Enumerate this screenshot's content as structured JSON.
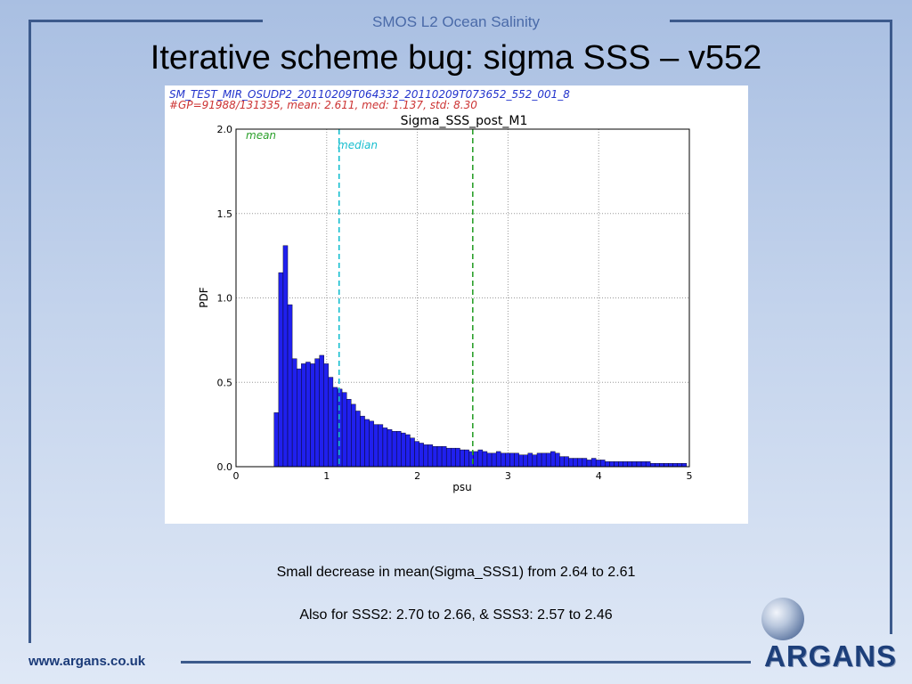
{
  "slide": {
    "header": "SMOS L2 Ocean Salinity",
    "title": "Iterative scheme bug: sigma SSS – v552",
    "note1": "Small decrease in mean(Sigma_SSS1) from 2.64 to 2.61",
    "note2": "Also for SSS2: 2.70 to 2.66, & SSS3: 2.57 to 2.46",
    "footer_url": "www.argans.co.uk",
    "logo_text": "ARGANS"
  },
  "chart_data": {
    "type": "bar",
    "annotation_file": "SM_TEST_MIR_OSUDP2_20110209T064332_20110209T073652_552_001_8",
    "annotation_stats": "#GP=91988/131335, mean: 2.611, med: 1.137, std: 8.30",
    "title": "Sigma_SSS_post_M1",
    "xlabel": "psu",
    "ylabel": "PDF",
    "xlim": [
      0,
      5
    ],
    "ylim": [
      0,
      2.0
    ],
    "xticks": [
      "0",
      "1",
      "2",
      "3",
      "4",
      "5"
    ],
    "yticks": [
      "0.0",
      "0.5",
      "1.0",
      "1.5",
      "2.0"
    ],
    "grid": true,
    "bin_start": 0.42,
    "bin_width": 0.05,
    "values": [
      0.32,
      1.15,
      1.31,
      0.96,
      0.64,
      0.58,
      0.61,
      0.62,
      0.61,
      0.64,
      0.66,
      0.61,
      0.53,
      0.47,
      0.46,
      0.44,
      0.4,
      0.37,
      0.33,
      0.3,
      0.28,
      0.27,
      0.25,
      0.25,
      0.23,
      0.22,
      0.21,
      0.21,
      0.2,
      0.19,
      0.17,
      0.15,
      0.14,
      0.13,
      0.13,
      0.12,
      0.12,
      0.12,
      0.11,
      0.11,
      0.11,
      0.1,
      0.1,
      0.09,
      0.09,
      0.1,
      0.09,
      0.08,
      0.08,
      0.09,
      0.08,
      0.08,
      0.08,
      0.08,
      0.07,
      0.07,
      0.08,
      0.07,
      0.08,
      0.08,
      0.08,
      0.09,
      0.08,
      0.06,
      0.06,
      0.05,
      0.05,
      0.05,
      0.05,
      0.04,
      0.05,
      0.04,
      0.04,
      0.03,
      0.03,
      0.03,
      0.03,
      0.03,
      0.03,
      0.03,
      0.03,
      0.03,
      0.03,
      0.02,
      0.02,
      0.02,
      0.02,
      0.02,
      0.02,
      0.02,
      0.02
    ],
    "lines": [
      {
        "name": "mean",
        "x": 2.611,
        "color": "#2ca02c"
      },
      {
        "name": "median",
        "x": 1.137,
        "color": "#17becf"
      }
    ],
    "bar_color": "#2020ee"
  }
}
